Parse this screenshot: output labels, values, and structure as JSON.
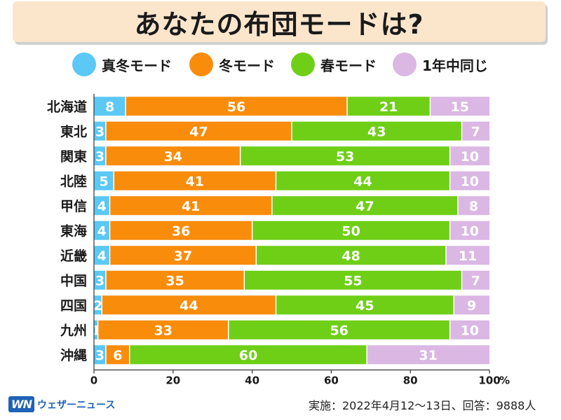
{
  "title": "あなたの布団モードは?",
  "legend": [
    {
      "label": "真冬モード",
      "color": "#5bc8f5"
    },
    {
      "label": "冬モード",
      "color": "#f98c0b"
    },
    {
      "label": "春モード",
      "color": "#6fcf17"
    },
    {
      "label": "1年中同じ",
      "color": "#dbb7e4"
    }
  ],
  "chart_data": {
    "type": "bar",
    "stacked": true,
    "orientation": "horizontal",
    "categories": [
      "北海道",
      "東北",
      "関東",
      "北陸",
      "甲信",
      "東海",
      "近畿",
      "中国",
      "四国",
      "九州",
      "沖縄"
    ],
    "series": [
      {
        "name": "真冬モード",
        "color": "#5bc8f5",
        "values": [
          8,
          3,
          3,
          5,
          4,
          4,
          4,
          3,
          2,
          1,
          3
        ]
      },
      {
        "name": "冬モード",
        "color": "#f98c0b",
        "values": [
          56,
          47,
          34,
          41,
          41,
          36,
          37,
          35,
          44,
          33,
          6
        ]
      },
      {
        "name": "春モード",
        "color": "#6fcf17",
        "values": [
          21,
          43,
          53,
          44,
          47,
          50,
          48,
          55,
          45,
          56,
          60
        ]
      },
      {
        "name": "1年中同じ",
        "color": "#dbb7e4",
        "values": [
          15,
          7,
          10,
          10,
          8,
          10,
          11,
          7,
          9,
          10,
          31
        ]
      }
    ],
    "xlim": [
      0,
      100
    ],
    "xticks": [
      "0",
      "20",
      "40",
      "60",
      "80",
      "100"
    ],
    "x_unit": "%",
    "grid": false
  },
  "footer": {
    "credit": "実施：2022年4月12～13日、回答：9888人",
    "logo_mark": "WN",
    "logo_text": "ウェザーニュース"
  }
}
